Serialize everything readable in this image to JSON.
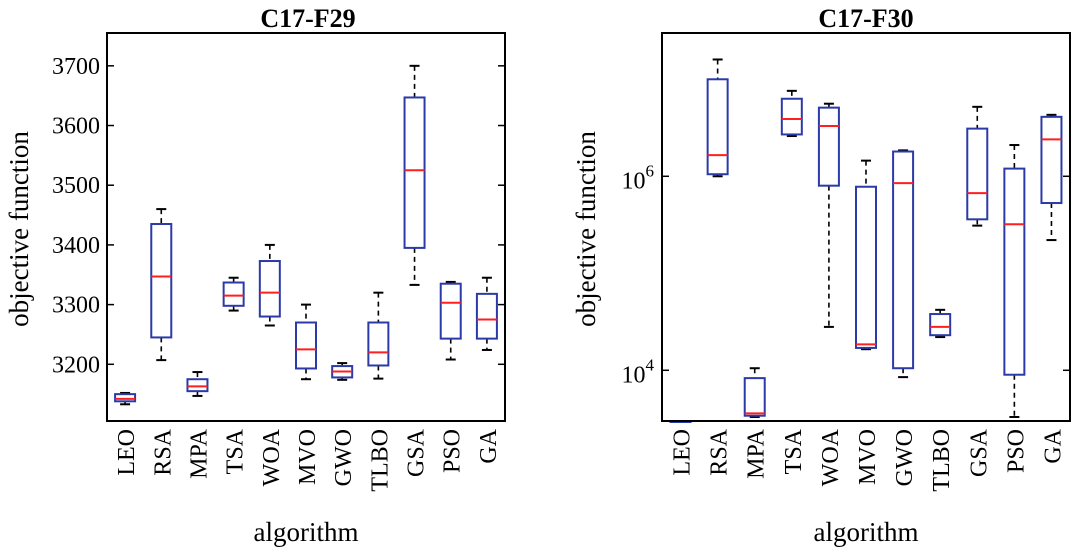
{
  "chart_data": [
    {
      "type": "box",
      "title": "C17-F29",
      "xlabel": "algorithm",
      "ylabel": "objective function",
      "yscale": "linear",
      "ylim": [
        3105,
        3755
      ],
      "yticks": [
        3200,
        3300,
        3400,
        3500,
        3600,
        3700
      ],
      "ytick_labels": [
        "3200",
        "3300",
        "3400",
        "3500",
        "3600",
        "3700"
      ],
      "categories": [
        "LEO",
        "RSA",
        "MPA",
        "TSA",
        "WOA",
        "MVO",
        "GWO",
        "TLBO",
        "GSA",
        "PSO",
        "GA"
      ],
      "boxes": [
        {
          "whisker_low": 3133,
          "q1": 3138,
          "median": 3142,
          "q3": 3150,
          "whisker_high": 3152
        },
        {
          "whisker_low": 3207,
          "q1": 3245,
          "median": 3347,
          "q3": 3435,
          "whisker_high": 3460
        },
        {
          "whisker_low": 3147,
          "q1": 3155,
          "median": 3163,
          "q3": 3175,
          "whisker_high": 3187
        },
        {
          "whisker_low": 3290,
          "q1": 3298,
          "median": 3315,
          "q3": 3337,
          "whisker_high": 3345
        },
        {
          "whisker_low": 3265,
          "q1": 3280,
          "median": 3320,
          "q3": 3373,
          "whisker_high": 3400
        },
        {
          "whisker_low": 3175,
          "q1": 3193,
          "median": 3225,
          "q3": 3270,
          "whisker_high": 3300
        },
        {
          "whisker_low": 3174,
          "q1": 3178,
          "median": 3188,
          "q3": 3197,
          "whisker_high": 3202
        },
        {
          "whisker_low": 3176,
          "q1": 3198,
          "median": 3220,
          "q3": 3270,
          "whisker_high": 3320
        },
        {
          "whisker_low": 3333,
          "q1": 3395,
          "median": 3525,
          "q3": 3647,
          "whisker_high": 3700
        },
        {
          "whisker_low": 3208,
          "q1": 3243,
          "median": 3303,
          "q3": 3335,
          "whisker_high": 3338
        },
        {
          "whisker_low": 3224,
          "q1": 3243,
          "median": 3275,
          "q3": 3318,
          "whisker_high": 3345
        }
      ]
    },
    {
      "type": "box",
      "title": "C17-F30",
      "xlabel": "algorithm",
      "ylabel": "objective function",
      "yscale": "log",
      "ylim": [
        3000,
        30000000
      ],
      "yticks": [
        10000,
        1000000
      ],
      "ytick_labels": [
        {
          "base": "10",
          "exp": "4"
        },
        {
          "base": "10",
          "exp": "6"
        }
      ],
      "categories": [
        "LEO",
        "RSA",
        "MPA",
        "TSA",
        "WOA",
        "MVO",
        "GWO",
        "TLBO",
        "GSA",
        "PSO",
        "GA"
      ],
      "boxes": [
        {
          "whisker_low": 3000,
          "q1": 3000,
          "median": 3000,
          "q3": 3000,
          "whisker_high": 3000
        },
        {
          "whisker_low": 1000000,
          "q1": 1050000,
          "median": 1650000,
          "q3": 10000000,
          "whisker_high": 16000000
        },
        {
          "whisker_low": 3300,
          "q1": 3400,
          "median": 3600,
          "q3": 8300,
          "whisker_high": 10500
        },
        {
          "whisker_low": 2600000,
          "q1": 2700000,
          "median": 3900000,
          "q3": 6300000,
          "whisker_high": 7600000
        },
        {
          "whisker_low": 28000,
          "q1": 800000,
          "median": 3300000,
          "q3": 5100000,
          "whisker_high": 5600000
        },
        {
          "whisker_low": 16500,
          "q1": 17000,
          "median": 18500,
          "q3": 780000,
          "whisker_high": 1450000
        },
        {
          "whisker_low": 8500,
          "q1": 10500,
          "median": 850000,
          "q3": 1800000,
          "whisker_high": 1850000
        },
        {
          "whisker_low": 22000,
          "q1": 23000,
          "median": 28000,
          "q3": 38000,
          "whisker_high": 42000
        },
        {
          "whisker_low": 310000,
          "q1": 360000,
          "median": 670000,
          "q3": 3100000,
          "whisker_high": 5200000
        },
        {
          "whisker_low": 3300,
          "q1": 9000,
          "median": 320000,
          "q3": 1200000,
          "whisker_high": 2100000
        },
        {
          "whisker_low": 220000,
          "q1": 530000,
          "median": 2400000,
          "q3": 4100000,
          "whisker_high": 4300000
        }
      ]
    }
  ]
}
